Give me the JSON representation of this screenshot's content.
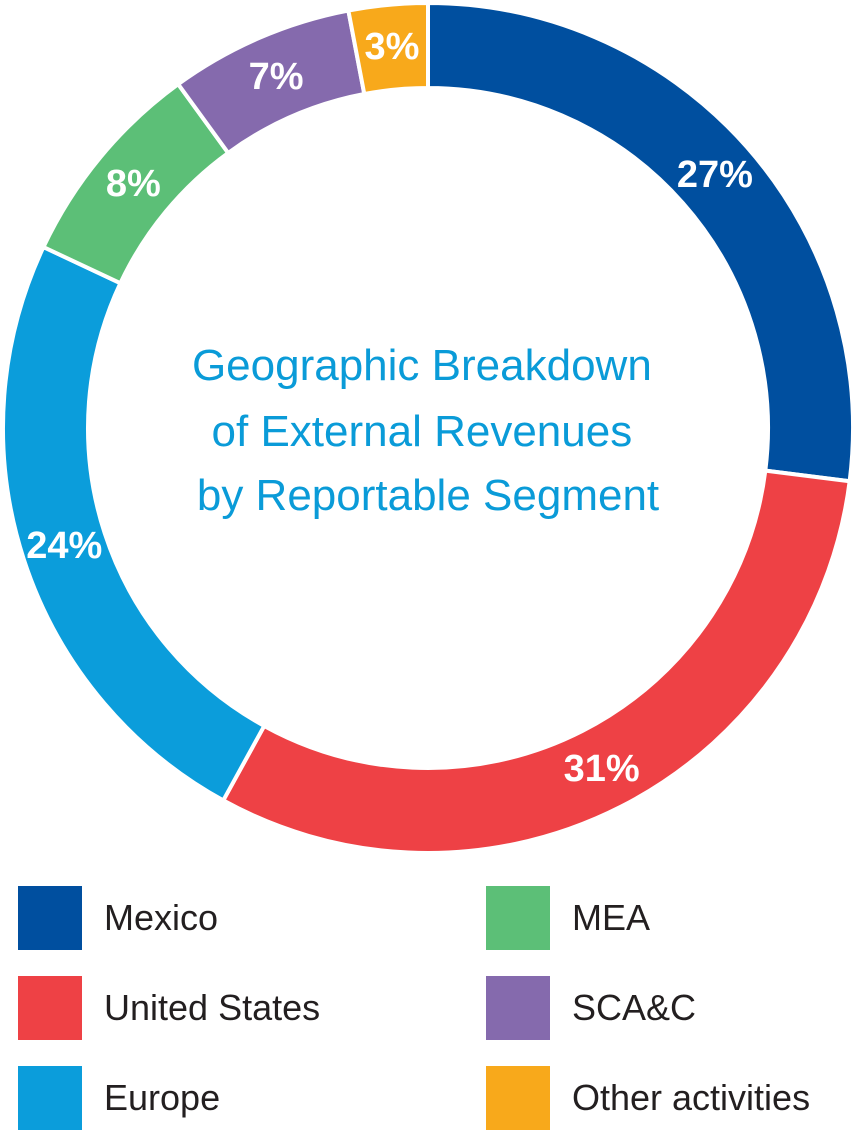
{
  "chart_data": {
    "type": "pie",
    "title_lines": [
      "Geographic Breakdown",
      "of  External Revenues",
      "by Reportable Segment"
    ],
    "title_color": "#0a9bd8",
    "slices": [
      {
        "name": "Mexico",
        "value": 27,
        "label": "27%",
        "color": "#004f9f"
      },
      {
        "name": "United States",
        "value": 31,
        "label": "31%",
        "color": "#ee4145"
      },
      {
        "name": "Europe",
        "value": 24,
        "label": "24%",
        "color": "#0b9ddb"
      },
      {
        "name": "MEA",
        "value": 8,
        "label": "8%",
        "color": "#5cbf77"
      },
      {
        "name": "SCA&C",
        "value": 7,
        "label": "7%",
        "color": "#856aad"
      },
      {
        "name": "Other activities",
        "value": 3,
        "label": "3%",
        "color": "#f8a91b"
      }
    ],
    "legend": [
      "Mexico",
      "United States",
      "Europe",
      "MEA",
      "SCA&C",
      "Other activities"
    ],
    "legend_placement": "bottom"
  }
}
